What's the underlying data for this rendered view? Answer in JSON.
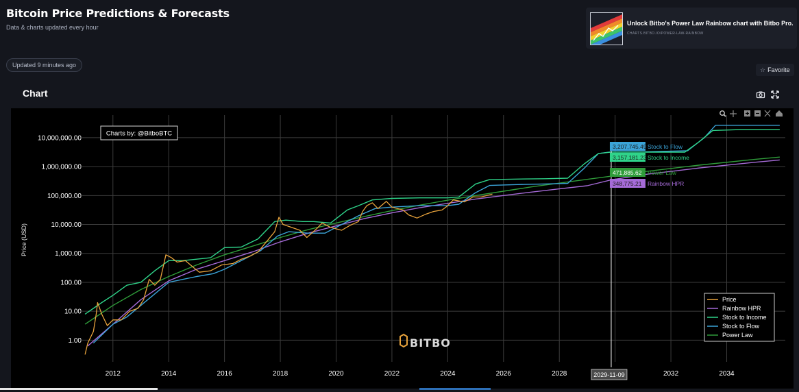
{
  "header": {
    "title": "Bitcoin Price Predictions & Forecasts",
    "subtitle": "Data & charts updated every hour",
    "updated": "Updated 9 minutes ago"
  },
  "promo": {
    "title": "Unlock Bitbo's Power Law Rainbow chart with Bitbo Pro.",
    "url": "CHARTS.BITBO.IO/POWER-LAW-RAINBOW"
  },
  "favorite_label": "Favorite",
  "section_title": "Chart",
  "icons": {
    "camera": "camera-icon",
    "expand": "expand-icon"
  },
  "chart_data": {
    "type": "line",
    "ylabel": "Price (USD)",
    "watermark_credit": "Charts by: @BitboBTC",
    "brand_mark": "BITBO",
    "y_scale": "log",
    "y_ticks": [
      "1.00",
      "10.00",
      "100.00",
      "1,000.00",
      "10,000.00",
      "100,000.00",
      "1,000,000.00",
      "10,000,000.00"
    ],
    "x_ticks": [
      "2012",
      "2014",
      "2016",
      "2018",
      "2020",
      "2022",
      "2024",
      "2026",
      "2028",
      "2030",
      "2032",
      "2034"
    ],
    "xlim": [
      2010.9,
      2036.1
    ],
    "ylim_log10": [
      -0.75,
      7.78
    ],
    "hover_date": "2029-11-09",
    "grid": true,
    "legend_position": "bottom-right",
    "series": [
      {
        "name": "Price",
        "color": "#e8a33c",
        "points": [
          [
            2011.0,
            -0.5
          ],
          [
            2011.1,
            -0.1
          ],
          [
            2011.3,
            0.3
          ],
          [
            2011.4,
            0.9
          ],
          [
            2011.45,
            1.3
          ],
          [
            2011.6,
            0.9
          ],
          [
            2011.8,
            0.5
          ],
          [
            2012.0,
            0.7
          ],
          [
            2012.3,
            0.7
          ],
          [
            2012.6,
            1.0
          ],
          [
            2012.9,
            1.1
          ],
          [
            2013.1,
            1.4
          ],
          [
            2013.3,
            2.1
          ],
          [
            2013.5,
            1.9
          ],
          [
            2013.7,
            2.1
          ],
          [
            2013.9,
            2.95
          ],
          [
            2014.1,
            2.85
          ],
          [
            2014.3,
            2.7
          ],
          [
            2014.6,
            2.75
          ],
          [
            2014.9,
            2.5
          ],
          [
            2015.1,
            2.35
          ],
          [
            2015.5,
            2.4
          ],
          [
            2015.9,
            2.6
          ],
          [
            2016.3,
            2.65
          ],
          [
            2016.6,
            2.8
          ],
          [
            2016.9,
            2.9
          ],
          [
            2017.2,
            3.05
          ],
          [
            2017.5,
            3.4
          ],
          [
            2017.8,
            3.75
          ],
          [
            2017.95,
            4.25
          ],
          [
            2018.1,
            4.0
          ],
          [
            2018.4,
            3.9
          ],
          [
            2018.7,
            3.8
          ],
          [
            2018.95,
            3.55
          ],
          [
            2019.3,
            3.85
          ],
          [
            2019.5,
            4.05
          ],
          [
            2019.8,
            3.9
          ],
          [
            2020.2,
            3.8
          ],
          [
            2020.5,
            3.97
          ],
          [
            2020.8,
            4.1
          ],
          [
            2020.95,
            4.45
          ],
          [
            2021.1,
            4.65
          ],
          [
            2021.3,
            4.75
          ],
          [
            2021.5,
            4.55
          ],
          [
            2021.8,
            4.8
          ],
          [
            2022.0,
            4.6
          ],
          [
            2022.4,
            4.5
          ],
          [
            2022.6,
            4.33
          ],
          [
            2022.9,
            4.22
          ],
          [
            2023.2,
            4.35
          ],
          [
            2023.5,
            4.45
          ],
          [
            2023.8,
            4.5
          ],
          [
            2024.0,
            4.65
          ],
          [
            2024.2,
            4.85
          ],
          [
            2024.6,
            4.78
          ],
          [
            2024.9,
            4.95
          ],
          [
            2025.2,
            4.95
          ],
          [
            2025.6,
            5.05
          ]
        ]
      },
      {
        "name": "Rainbow HPR",
        "color": "#a66bd8",
        "points": [
          [
            2011.1,
            -0.2
          ],
          [
            2012.0,
            0.55
          ],
          [
            2013.0,
            1.4
          ],
          [
            2014.0,
            2.05
          ],
          [
            2015.0,
            2.45
          ],
          [
            2016.0,
            2.75
          ],
          [
            2017.0,
            3.05
          ],
          [
            2018.0,
            3.4
          ],
          [
            2019.0,
            3.7
          ],
          [
            2020.0,
            3.95
          ],
          [
            2021.0,
            4.2
          ],
          [
            2022.0,
            4.4
          ],
          [
            2023.0,
            4.58
          ],
          [
            2024.0,
            4.73
          ],
          [
            2025.0,
            4.88
          ],
          [
            2026.0,
            5.0
          ],
          [
            2027.0,
            5.12
          ],
          [
            2028.0,
            5.23
          ],
          [
            2029.0,
            5.34
          ],
          [
            2029.86,
            5.54
          ],
          [
            2031.0,
            5.72
          ],
          [
            2033.0,
            5.95
          ],
          [
            2035.0,
            6.15
          ],
          [
            2035.9,
            6.23
          ]
        ]
      },
      {
        "name": "Stock to Income",
        "color": "#2fd48a",
        "points": [
          [
            2011.0,
            0.9
          ],
          [
            2011.6,
            1.3
          ],
          [
            2012.0,
            1.55
          ],
          [
            2012.5,
            1.9
          ],
          [
            2013.0,
            2.0
          ],
          [
            2013.5,
            2.4
          ],
          [
            2014.0,
            2.75
          ],
          [
            2014.5,
            2.75
          ],
          [
            2015.0,
            2.8
          ],
          [
            2015.5,
            2.85
          ],
          [
            2016.0,
            3.2
          ],
          [
            2016.6,
            3.22
          ],
          [
            2017.2,
            3.5
          ],
          [
            2017.8,
            4.1
          ],
          [
            2018.2,
            4.15
          ],
          [
            2018.8,
            4.1
          ],
          [
            2019.2,
            4.1
          ],
          [
            2019.8,
            4.05
          ],
          [
            2020.4,
            4.5
          ],
          [
            2020.8,
            4.65
          ],
          [
            2021.3,
            4.85
          ],
          [
            2022.0,
            4.9
          ],
          [
            2023.0,
            4.92
          ],
          [
            2024.0,
            4.92
          ],
          [
            2024.4,
            4.95
          ],
          [
            2025.0,
            5.4
          ],
          [
            2025.5,
            5.55
          ],
          [
            2026.5,
            5.57
          ],
          [
            2027.5,
            5.58
          ],
          [
            2028.3,
            5.6
          ],
          [
            2028.9,
            6.1
          ],
          [
            2029.4,
            6.45
          ],
          [
            2029.86,
            6.5
          ],
          [
            2030.5,
            6.5
          ],
          [
            2032.5,
            6.5
          ],
          [
            2033.0,
            6.85
          ],
          [
            2033.5,
            7.25
          ],
          [
            2034.5,
            7.28
          ],
          [
            2035.9,
            7.28
          ]
        ]
      },
      {
        "name": "Stock to Flow",
        "color": "#3ba4d8",
        "points": [
          [
            2011.3,
            -0.1
          ],
          [
            2012.0,
            0.55
          ],
          [
            2012.5,
            0.8
          ],
          [
            2013.0,
            1.2
          ],
          [
            2013.5,
            1.6
          ],
          [
            2014.0,
            2.0
          ],
          [
            2014.5,
            2.1
          ],
          [
            2015.0,
            2.2
          ],
          [
            2015.6,
            2.3
          ],
          [
            2016.0,
            2.45
          ],
          [
            2016.7,
            2.8
          ],
          [
            2017.3,
            3.1
          ],
          [
            2017.9,
            3.6
          ],
          [
            2018.3,
            3.75
          ],
          [
            2019.0,
            3.7
          ],
          [
            2019.6,
            3.7
          ],
          [
            2020.3,
            4.05
          ],
          [
            2020.8,
            4.3
          ],
          [
            2021.4,
            4.55
          ],
          [
            2022.0,
            4.6
          ],
          [
            2023.0,
            4.65
          ],
          [
            2024.0,
            4.65
          ],
          [
            2024.4,
            4.7
          ],
          [
            2025.0,
            5.1
          ],
          [
            2025.5,
            5.35
          ],
          [
            2026.5,
            5.38
          ],
          [
            2027.5,
            5.4
          ],
          [
            2028.3,
            5.42
          ],
          [
            2028.9,
            5.95
          ],
          [
            2029.4,
            6.45
          ],
          [
            2029.86,
            6.51
          ],
          [
            2031.0,
            6.51
          ],
          [
            2032.6,
            6.55
          ],
          [
            2033.2,
            7.0
          ],
          [
            2033.6,
            7.43
          ],
          [
            2034.5,
            7.43
          ],
          [
            2035.9,
            7.43
          ]
        ]
      },
      {
        "name": "Power Law",
        "color": "#2f9c3a",
        "points": [
          [
            2011.0,
            0.55
          ],
          [
            2012.0,
            1.2
          ],
          [
            2013.0,
            1.75
          ],
          [
            2014.0,
            2.2
          ],
          [
            2015.0,
            2.6
          ],
          [
            2016.0,
            2.95
          ],
          [
            2017.0,
            3.25
          ],
          [
            2018.0,
            3.55
          ],
          [
            2019.0,
            3.82
          ],
          [
            2020.0,
            4.05
          ],
          [
            2021.0,
            4.27
          ],
          [
            2022.0,
            4.48
          ],
          [
            2023.0,
            4.67
          ],
          [
            2024.0,
            4.84
          ],
          [
            2025.0,
            5.0
          ],
          [
            2026.0,
            5.15
          ],
          [
            2027.0,
            5.3
          ],
          [
            2028.0,
            5.43
          ],
          [
            2029.0,
            5.56
          ],
          [
            2029.86,
            5.67
          ],
          [
            2031.0,
            5.82
          ],
          [
            2033.0,
            6.05
          ],
          [
            2035.0,
            6.25
          ],
          [
            2035.9,
            6.33
          ]
        ]
      }
    ],
    "hover_labels": [
      {
        "series": "Stock to Flow",
        "value": "3,207,745.49",
        "label": "Stock to Flow",
        "bg": "#3ba4d8",
        "text": "#3ba4d8"
      },
      {
        "series": "Stock to Income",
        "value": "3,157,181.23",
        "label": "Stock to Income",
        "bg": "#2fd48a",
        "text": "#2fd48a"
      },
      {
        "series": "Power Law",
        "value": "471,885.62",
        "label": "Power Law",
        "bg": "#2f9c3a",
        "text": "#2f9c3a"
      },
      {
        "series": "Rainbow HPR",
        "value": "348,775.21",
        "label": "Rainbow HPR",
        "bg": "#a66bd8",
        "text": "#a66bd8"
      }
    ],
    "legend": [
      "Price",
      "Rainbow HPR",
      "Stock to Income",
      "Stock to Flow",
      "Power Law"
    ]
  }
}
